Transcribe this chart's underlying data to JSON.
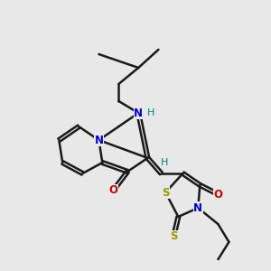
{
  "bg_color": "#e8e8e8",
  "bond_color": "#1a1a1a",
  "N_color": "#0000cc",
  "O_color": "#cc0000",
  "S_color": "#999900",
  "H_color": "#008080",
  "line_width": 1.8,
  "dbo": 0.055,
  "figsize": [
    3.0,
    3.0
  ],
  "dpi": 100,
  "xlim": [
    0.5,
    9.5
  ],
  "ylim": [
    0.5,
    9.5
  ]
}
